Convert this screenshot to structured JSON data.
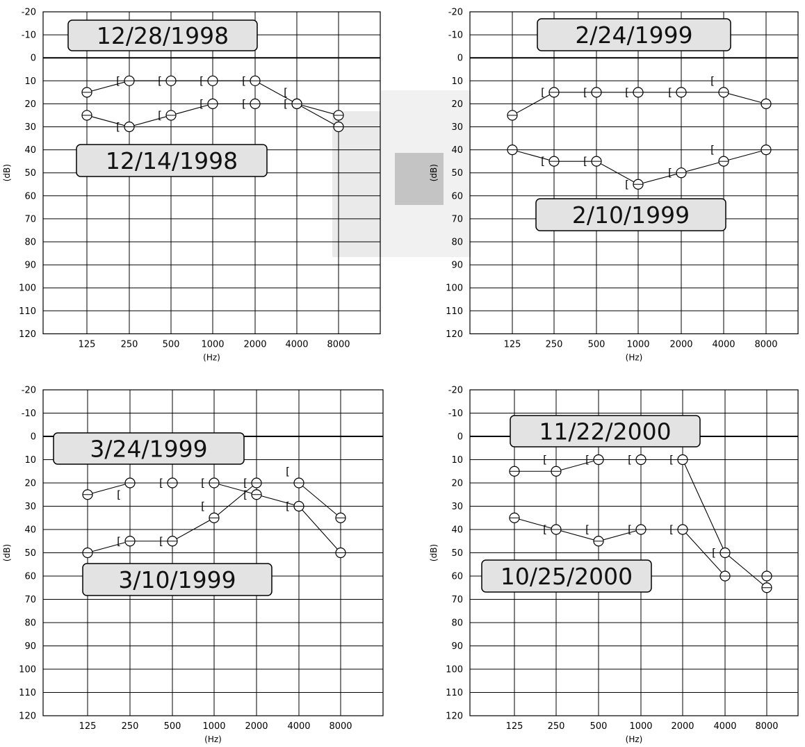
{
  "chart_data": [
    {
      "type": "line",
      "xlabel": "(Hz)",
      "ylabel": "(dB)",
      "categories": [
        "125",
        "250",
        "500",
        "1000",
        "2000",
        "4000",
        "8000"
      ],
      "yticks": [
        "-20",
        "-10",
        "0",
        "10",
        "20",
        "30",
        "40",
        "50",
        "60",
        "70",
        "80",
        "90",
        "100",
        "110",
        "120"
      ],
      "ylim": [
        -20,
        120
      ],
      "y_inverted": true,
      "grid": true,
      "series": [
        {
          "name": "12/28/1998",
          "values": [
            15,
            10,
            10,
            10,
            10,
            20,
            25
          ],
          "bone_marks": [
            null,
            10,
            10,
            10,
            10,
            15,
            null
          ]
        },
        {
          "name": "12/14/1998",
          "values": [
            25,
            30,
            25,
            20,
            20,
            20,
            30
          ],
          "bone_marks": [
            null,
            30,
            25,
            20,
            20,
            20,
            null
          ]
        }
      ]
    },
    {
      "type": "line",
      "xlabel": "(Hz)",
      "ylabel": "(dB)",
      "categories": [
        "125",
        "250",
        "500",
        "1000",
        "2000",
        "4000",
        "8000"
      ],
      "yticks": [
        "-20",
        "-10",
        "0",
        "10",
        "20",
        "30",
        "40",
        "50",
        "60",
        "70",
        "80",
        "90",
        "100",
        "110",
        "120"
      ],
      "ylim": [
        -20,
        120
      ],
      "y_inverted": true,
      "grid": true,
      "series": [
        {
          "name": "2/24/1999",
          "values": [
            25,
            15,
            15,
            15,
            15,
            15,
            20
          ],
          "bone_marks": [
            null,
            15,
            15,
            15,
            15,
            10,
            null
          ]
        },
        {
          "name": "2/10/1999",
          "values": [
            40,
            45,
            45,
            55,
            50,
            45,
            40
          ],
          "bone_marks": [
            null,
            45,
            45,
            55,
            50,
            40,
            null
          ]
        }
      ]
    },
    {
      "type": "line",
      "xlabel": "(Hz)",
      "ylabel": "(dB)",
      "categories": [
        "125",
        "250",
        "500",
        "1000",
        "2000",
        "4000",
        "8000"
      ],
      "yticks": [
        "-20",
        "-10",
        "0",
        "10",
        "20",
        "30",
        "40",
        "50",
        "60",
        "70",
        "80",
        "90",
        "100",
        "110",
        "120"
      ],
      "ylim": [
        -20,
        120
      ],
      "y_inverted": true,
      "grid": true,
      "series": [
        {
          "name": "3/24/1999",
          "values": [
            25,
            20,
            20,
            20,
            25,
            30,
            50
          ],
          "bone_marks": [
            null,
            25,
            20,
            20,
            25,
            30,
            null
          ]
        },
        {
          "name": "3/10/1999",
          "values": [
            50,
            45,
            45,
            35,
            20,
            20,
            35
          ],
          "bone_marks": [
            null,
            45,
            45,
            30,
            20,
            15,
            null
          ]
        }
      ]
    },
    {
      "type": "line",
      "xlabel": "(Hz)",
      "ylabel": "(dB)",
      "categories": [
        "125",
        "250",
        "500",
        "1000",
        "2000",
        "4000",
        "8000"
      ],
      "yticks": [
        "-20",
        "-10",
        "0",
        "10",
        "20",
        "30",
        "40",
        "50",
        "60",
        "70",
        "80",
        "90",
        "100",
        "110",
        "120"
      ],
      "ylim": [
        -20,
        120
      ],
      "y_inverted": true,
      "grid": true,
      "series": [
        {
          "name": "11/22/2000",
          "values": [
            15,
            15,
            10,
            10,
            10,
            50,
            65
          ],
          "bone_marks": [
            null,
            10,
            10,
            10,
            10,
            50,
            null
          ]
        },
        {
          "name": "10/25/2000",
          "values": [
            35,
            40,
            45,
            40,
            40,
            60,
            60
          ],
          "bone_marks": [
            null,
            40,
            40,
            40,
            40,
            null,
            null
          ]
        }
      ]
    }
  ]
}
